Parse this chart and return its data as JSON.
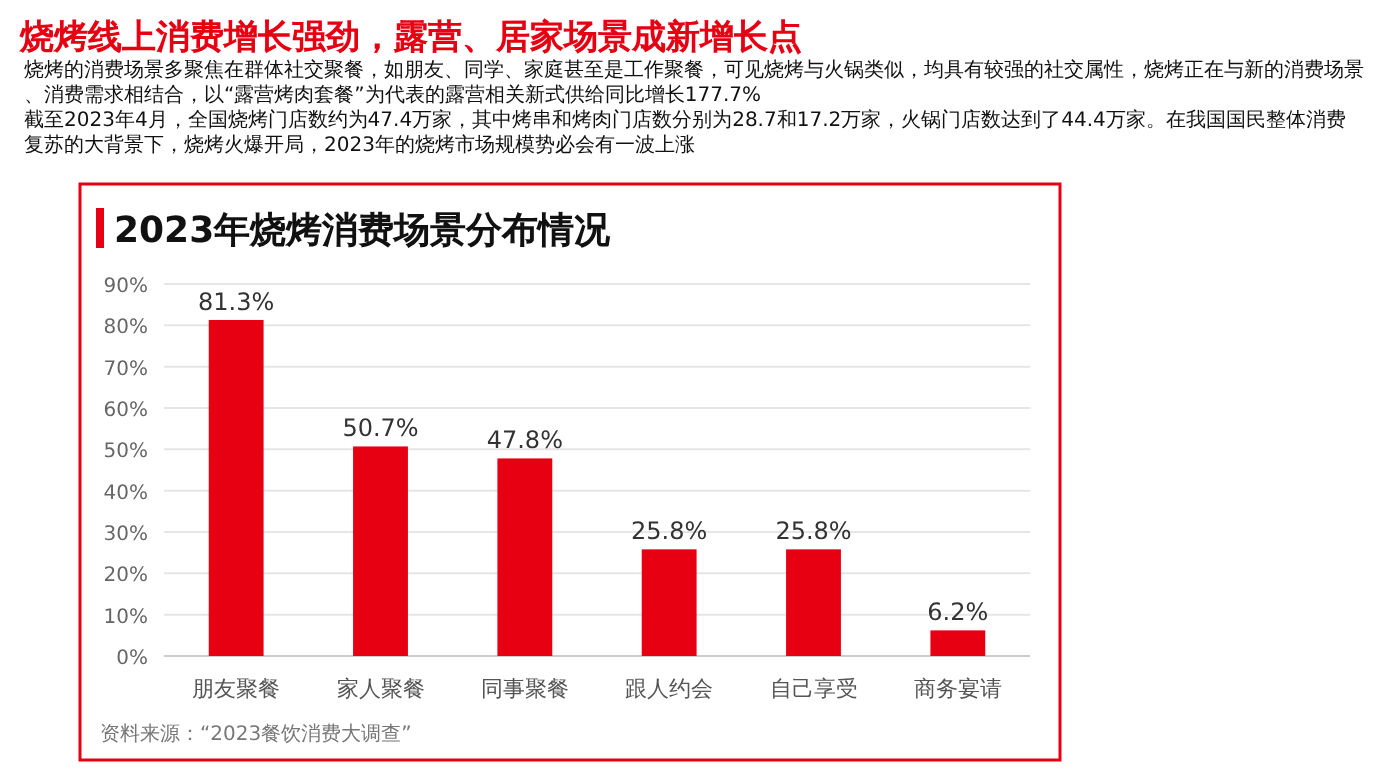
{
  "chart_data": {
    "type": "bar",
    "title": "烧烤线上消费增长强劲，露营、居家场景成新增长点",
    "subtitle": "2023年烧烤消费场景分布情况",
    "annotations": [
      "烧烤的消费场景多聚焦在群体社交聚餐，如朋友、同学、家庭甚至是工作聚餐，可见烧烤与火锅类似，均具有较强的社交属性，烧烤正在与新的消费场景、消费需求相结合，以“露营烤肉套餐”为代表的露营相关新式供给同比增长177.7%",
      "截至2023年4月，全国烧烤门店数约为47.4万家，其中烤串和烤肉门店数分别为28.7和17.2万家，火锅门店数达到了44.4万家。在我国国民整体消费复苏的大背景下，烧烤火爆开局，2023年的烧烤市场规模势必会有一波上涨",
      "资料来源：“2023餐饮消费大调查”"
    ],
    "categories": [
      "朋友聚餐",
      "家人聚餐",
      "同事聚餐",
      "跟人约会",
      "自己享受",
      "商务宴请"
    ],
    "values": [
      81.3,
      50.7,
      47.8,
      25.8,
      25.8,
      6.2
    ],
    "value_labels": [
      "81.3%",
      "50.7%",
      "47.8%",
      "25.8%",
      "25.8%",
      "6.2%"
    ],
    "color": "#e60012",
    "ylim": [
      0,
      90
    ],
    "yticks": [
      {
        "value": 0,
        "label": "0%"
      },
      {
        "value": 10,
        "label": "10%"
      },
      {
        "value": 20,
        "label": "20%"
      },
      {
        "value": 30,
        "label": "30%"
      },
      {
        "value": 40,
        "label": "40%"
      },
      {
        "value": 50,
        "label": "50%"
      },
      {
        "value": 60,
        "label": "60%"
      },
      {
        "value": 70,
        "label": "70%"
      },
      {
        "value": 80,
        "label": "80%"
      },
      {
        "value": 90,
        "label": "90%"
      }
    ],
    "grid": "y"
  }
}
